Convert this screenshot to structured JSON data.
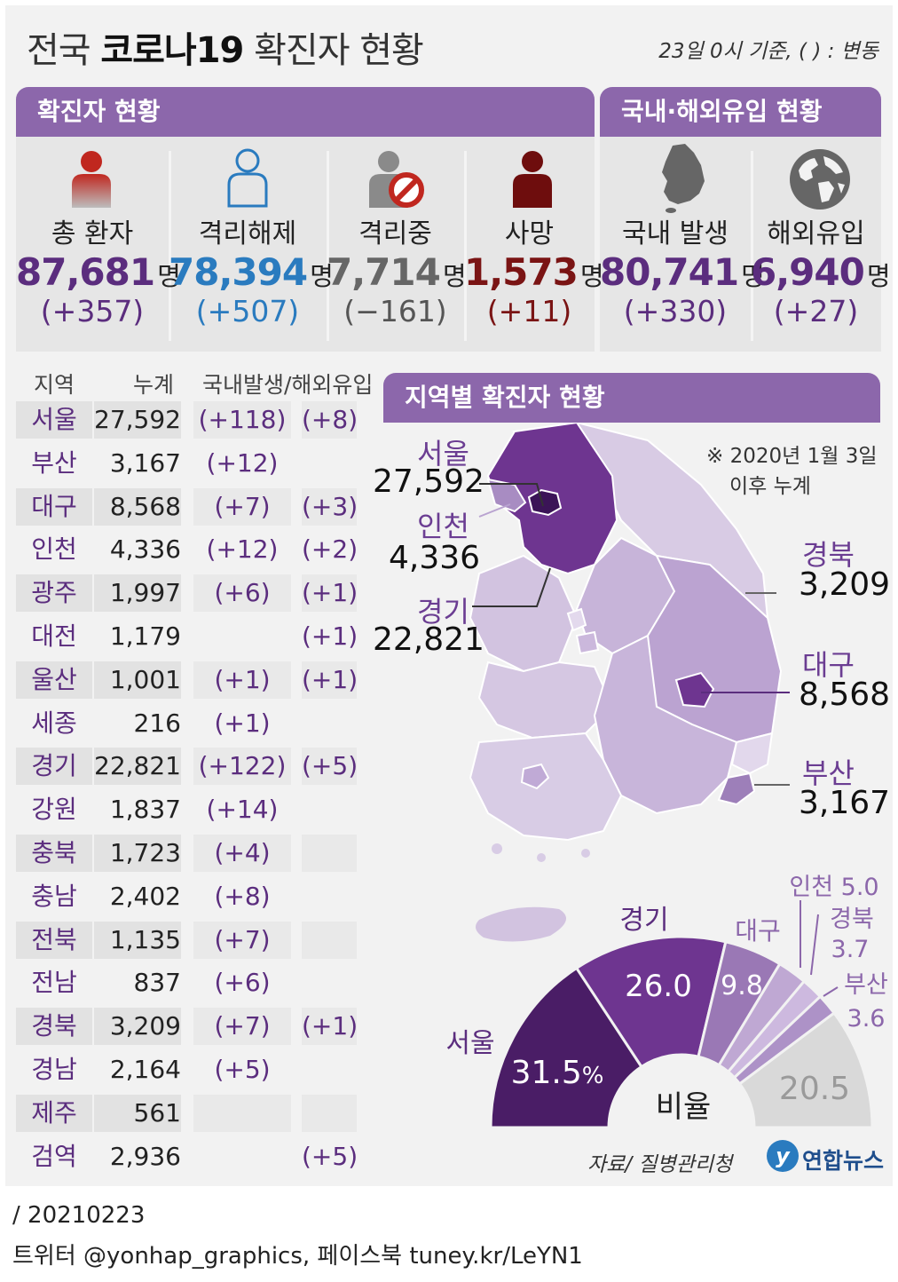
{
  "header": {
    "title_prefix": "전국 ",
    "title_bold": "코로나19",
    "title_suffix": " 확진자 현황",
    "basis": "23일 0시 기준, ( ) : 변동"
  },
  "confirmed_section": {
    "title": "확진자 현황",
    "stats": [
      {
        "label": "총 환자",
        "value": "87,681",
        "unit": "명",
        "change": "(+357)",
        "color": "#5b2d7e",
        "icon": "person-red-icon"
      },
      {
        "label": "격리해제",
        "value": "78,394",
        "unit": "명",
        "change": "(+507)",
        "color": "#2a7bbf",
        "icon": "person-outline-blue-icon"
      },
      {
        "label": "격리중",
        "value": "7,714",
        "unit": "명",
        "change": "(−161)",
        "color": "#666666",
        "icon": "person-prohibited-icon"
      },
      {
        "label": "사망",
        "value": "1,573",
        "unit": "명",
        "change": "(+11)",
        "color": "#7a1414",
        "icon": "person-darkred-icon"
      }
    ]
  },
  "origin_section": {
    "title": "국내·해외유입 현황",
    "stats": [
      {
        "label": "국내 발생",
        "value": "80,741",
        "unit": "명",
        "change": "(+330)",
        "color": "#5b2d7e",
        "icon": "korea-map-icon"
      },
      {
        "label": "해외유입",
        "value": "6,940",
        "unit": "명",
        "change": "(+27)",
        "color": "#5b2d7e",
        "icon": "globe-icon"
      }
    ]
  },
  "region_table": {
    "headers": [
      "지역",
      "누계",
      "국내발생/해외유입"
    ],
    "rows": [
      {
        "region": "서울",
        "total": "27,592",
        "domestic": "(+118)",
        "imported": "(+8)"
      },
      {
        "region": "부산",
        "total": "3,167",
        "domestic": "(+12)",
        "imported": ""
      },
      {
        "region": "대구",
        "total": "8,568",
        "domestic": "(+7)",
        "imported": "(+3)"
      },
      {
        "region": "인천",
        "total": "4,336",
        "domestic": "(+12)",
        "imported": "(+2)"
      },
      {
        "region": "광주",
        "total": "1,997",
        "domestic": "(+6)",
        "imported": "(+1)"
      },
      {
        "region": "대전",
        "total": "1,179",
        "domestic": "",
        "imported": "(+1)"
      },
      {
        "region": "울산",
        "total": "1,001",
        "domestic": "(+1)",
        "imported": "(+1)"
      },
      {
        "region": "세종",
        "total": "216",
        "domestic": "(+1)",
        "imported": ""
      },
      {
        "region": "경기",
        "total": "22,821",
        "domestic": "(+122)",
        "imported": "(+5)"
      },
      {
        "region": "강원",
        "total": "1,837",
        "domestic": "(+14)",
        "imported": ""
      },
      {
        "region": "충북",
        "total": "1,723",
        "domestic": "(+4)",
        "imported": ""
      },
      {
        "region": "충남",
        "total": "2,402",
        "domestic": "(+8)",
        "imported": ""
      },
      {
        "region": "전북",
        "total": "1,135",
        "domestic": "(+7)",
        "imported": ""
      },
      {
        "region": "전남",
        "total": "837",
        "domestic": "(+6)",
        "imported": ""
      },
      {
        "region": "경북",
        "total": "3,209",
        "domestic": "(+7)",
        "imported": "(+1)"
      },
      {
        "region": "경남",
        "total": "2,164",
        "domestic": "(+5)",
        "imported": ""
      },
      {
        "region": "제주",
        "total": "561",
        "domestic": "",
        "imported": ""
      },
      {
        "region": "검역",
        "total": "2,936",
        "domestic": "",
        "imported": "(+5)"
      }
    ]
  },
  "map_section": {
    "title": "지역별 확진자 현황",
    "note_line1": "※ 2020년 1월 3일",
    "note_line2": "이후 누계",
    "labels": {
      "seoul_name": "서울",
      "seoul_value": "27,592",
      "incheon_name": "인천",
      "incheon_value": "4,336",
      "gyeonggi_name": "경기",
      "gyeonggi_value": "22,821",
      "gyeongbuk_name": "경북",
      "gyeongbuk_value": "3,209",
      "daegu_name": "대구",
      "daegu_value": "8,568",
      "busan_name": "부산",
      "busan_value": "3,167"
    }
  },
  "chart_data": {
    "type": "pie",
    "title": "비율",
    "unit": "%",
    "slices": [
      {
        "label": "서울",
        "value": 31.5,
        "color": "#4a1d66"
      },
      {
        "label": "경기",
        "value": 26.0,
        "color": "#6e3590"
      },
      {
        "label": "대구",
        "value": 9.8,
        "color": "#9a78b5"
      },
      {
        "label": "인천",
        "value": 5.0,
        "color": "#bfa8d3"
      },
      {
        "label": "경북",
        "value": 3.7,
        "color": "#cdb9df"
      },
      {
        "label": "부산",
        "value": 3.6,
        "color": "#ad92c7"
      },
      {
        "label": "",
        "value": 20.5,
        "color": "#d9d9d9"
      }
    ],
    "inner_labels": [
      "31.5",
      "26.0",
      "9.8",
      "20.5"
    ],
    "outer_labels": {
      "seoul": "서울",
      "gyeonggi": "경기",
      "daegu": "대구",
      "incheon": "인천 5.0",
      "gyeongbuk_name": "경북",
      "gyeongbuk_value": "3.7",
      "busan_name": "부산",
      "busan_value": "3.6"
    }
  },
  "source": {
    "text": "자료/ 질병관리청",
    "brand": "연합뉴스"
  },
  "footer": {
    "date": "/ 20210223",
    "social": "트위터 @yonhap_graphics, 페이스북 tuney.kr/LeYN1"
  },
  "colors": {
    "accent": "#8c67ab",
    "dark_purple": "#5b2d7e",
    "blue": "#2a7bbf",
    "dark_red": "#7a1414"
  }
}
